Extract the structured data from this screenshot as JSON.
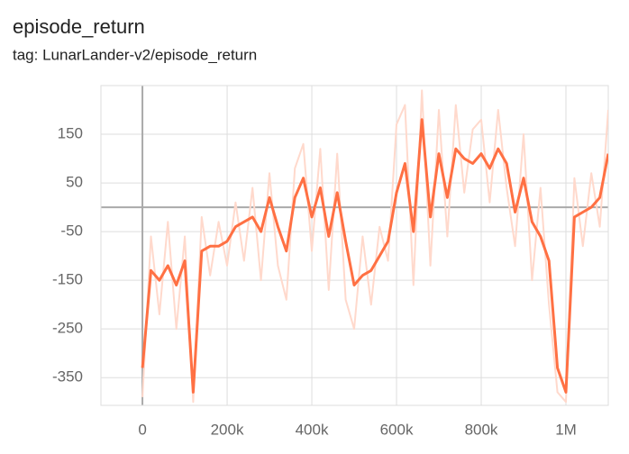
{
  "chart_data": {
    "type": "line",
    "title": "episode_return",
    "subtitle": "tag: LunarLander-v2/episode_return",
    "x": [
      0,
      20000,
      40000,
      60000,
      80000,
      100000,
      120000,
      140000,
      160000,
      180000,
      200000,
      220000,
      240000,
      260000,
      280000,
      300000,
      320000,
      340000,
      360000,
      380000,
      400000,
      420000,
      440000,
      460000,
      480000,
      500000,
      520000,
      540000,
      560000,
      580000,
      600000,
      620000,
      640000,
      660000,
      680000,
      700000,
      720000,
      740000,
      760000,
      780000,
      800000,
      820000,
      840000,
      860000,
      880000,
      900000,
      920000,
      940000,
      960000,
      980000,
      1000000,
      1020000,
      1040000,
      1060000,
      1080000,
      1100000
    ],
    "series": [
      {
        "color": "#ffd9cc",
        "values": [
          -390,
          -60,
          -220,
          -30,
          -250,
          -60,
          -400,
          -20,
          -140,
          -30,
          -120,
          10,
          -110,
          40,
          -150,
          70,
          -120,
          -190,
          80,
          130,
          -90,
          120,
          -170,
          110,
          -190,
          -250,
          -60,
          -200,
          -40,
          -110,
          170,
          210,
          -160,
          240,
          -120,
          200,
          -60,
          210,
          30,
          160,
          180,
          10,
          200,
          40,
          -80,
          150,
          -150,
          40,
          -200,
          -380,
          -400,
          60,
          -80,
          70,
          -40,
          200
        ]
      },
      {
        "color": "#ff7043",
        "values": [
          -330,
          -130,
          -150,
          -120,
          -160,
          -110,
          -380,
          -90,
          -80,
          -80,
          -70,
          -40,
          -30,
          -20,
          -50,
          20,
          -40,
          -90,
          20,
          60,
          -20,
          40,
          -60,
          30,
          -70,
          -160,
          -140,
          -130,
          -100,
          -70,
          30,
          90,
          -50,
          180,
          -20,
          110,
          20,
          120,
          100,
          90,
          110,
          80,
          120,
          90,
          -10,
          60,
          -30,
          -60,
          -110,
          -330,
          -380,
          -20,
          -10,
          0,
          20,
          110
        ]
      }
    ],
    "xlim": [
      -98000,
      1100000
    ],
    "ylim": [
      -407,
      250
    ],
    "xticks": [
      0,
      {
        "value": 200000,
        "label": "200k"
      },
      {
        "value": 400000,
        "label": "400k"
      },
      {
        "value": 600000,
        "label": "600k"
      },
      {
        "value": 800000,
        "label": "800k"
      },
      {
        "value": 1000000,
        "label": "1M"
      }
    ],
    "yticks": [
      -350,
      -250,
      -150,
      -50,
      50,
      150
    ],
    "grid": true
  }
}
